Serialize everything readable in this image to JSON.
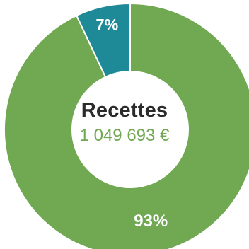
{
  "chart_data": {
    "type": "pie",
    "title": "Recettes",
    "subtitle": "1 049 693 €",
    "slices": [
      {
        "label": "93%",
        "value": 93,
        "color": "#71a852"
      },
      {
        "label": "7%",
        "value": 7,
        "color": "#1e8a98"
      }
    ]
  },
  "colors": {
    "title": "#2b2b2b",
    "subtitle": "#71a852",
    "slice_label": "#ffffff"
  }
}
